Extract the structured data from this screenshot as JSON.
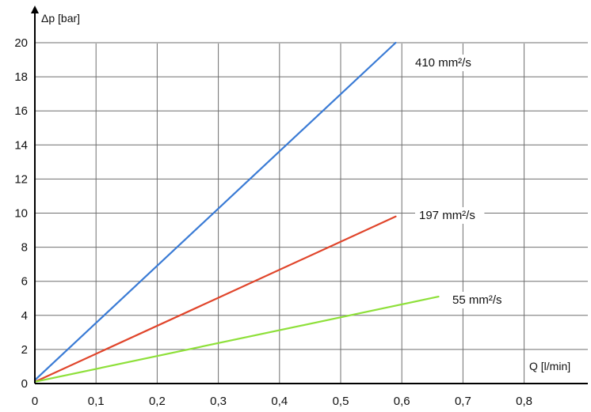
{
  "chart_data": {
    "type": "line",
    "xlabel": "Q [l/min]",
    "ylabel": "Δp [bar]",
    "xlim": [
      0,
      0.9
    ],
    "ylim": [
      0,
      20
    ],
    "x_ticks": [
      "0",
      "0,1",
      "0,2",
      "0,3",
      "0,4",
      "0,5",
      "0,6",
      "0,7",
      "0,8"
    ],
    "y_ticks": [
      "0",
      "2",
      "4",
      "6",
      "8",
      "10",
      "12",
      "14",
      "16",
      "18",
      "20"
    ],
    "grid": true,
    "legend": "none",
    "series": [
      {
        "name": "410 mm²/s",
        "color": "#3a7bd5",
        "x": [
          0,
          0.59
        ],
        "y": [
          0.2,
          20
        ]
      },
      {
        "name": "197 mm²/s",
        "color": "#e0452b",
        "x": [
          0,
          0.59
        ],
        "y": [
          0.1,
          9.8
        ]
      },
      {
        "name": "55 mm²/s",
        "color": "#8ee03a",
        "x": [
          0,
          0.66
        ],
        "y": [
          0.1,
          5.1
        ]
      }
    ]
  }
}
